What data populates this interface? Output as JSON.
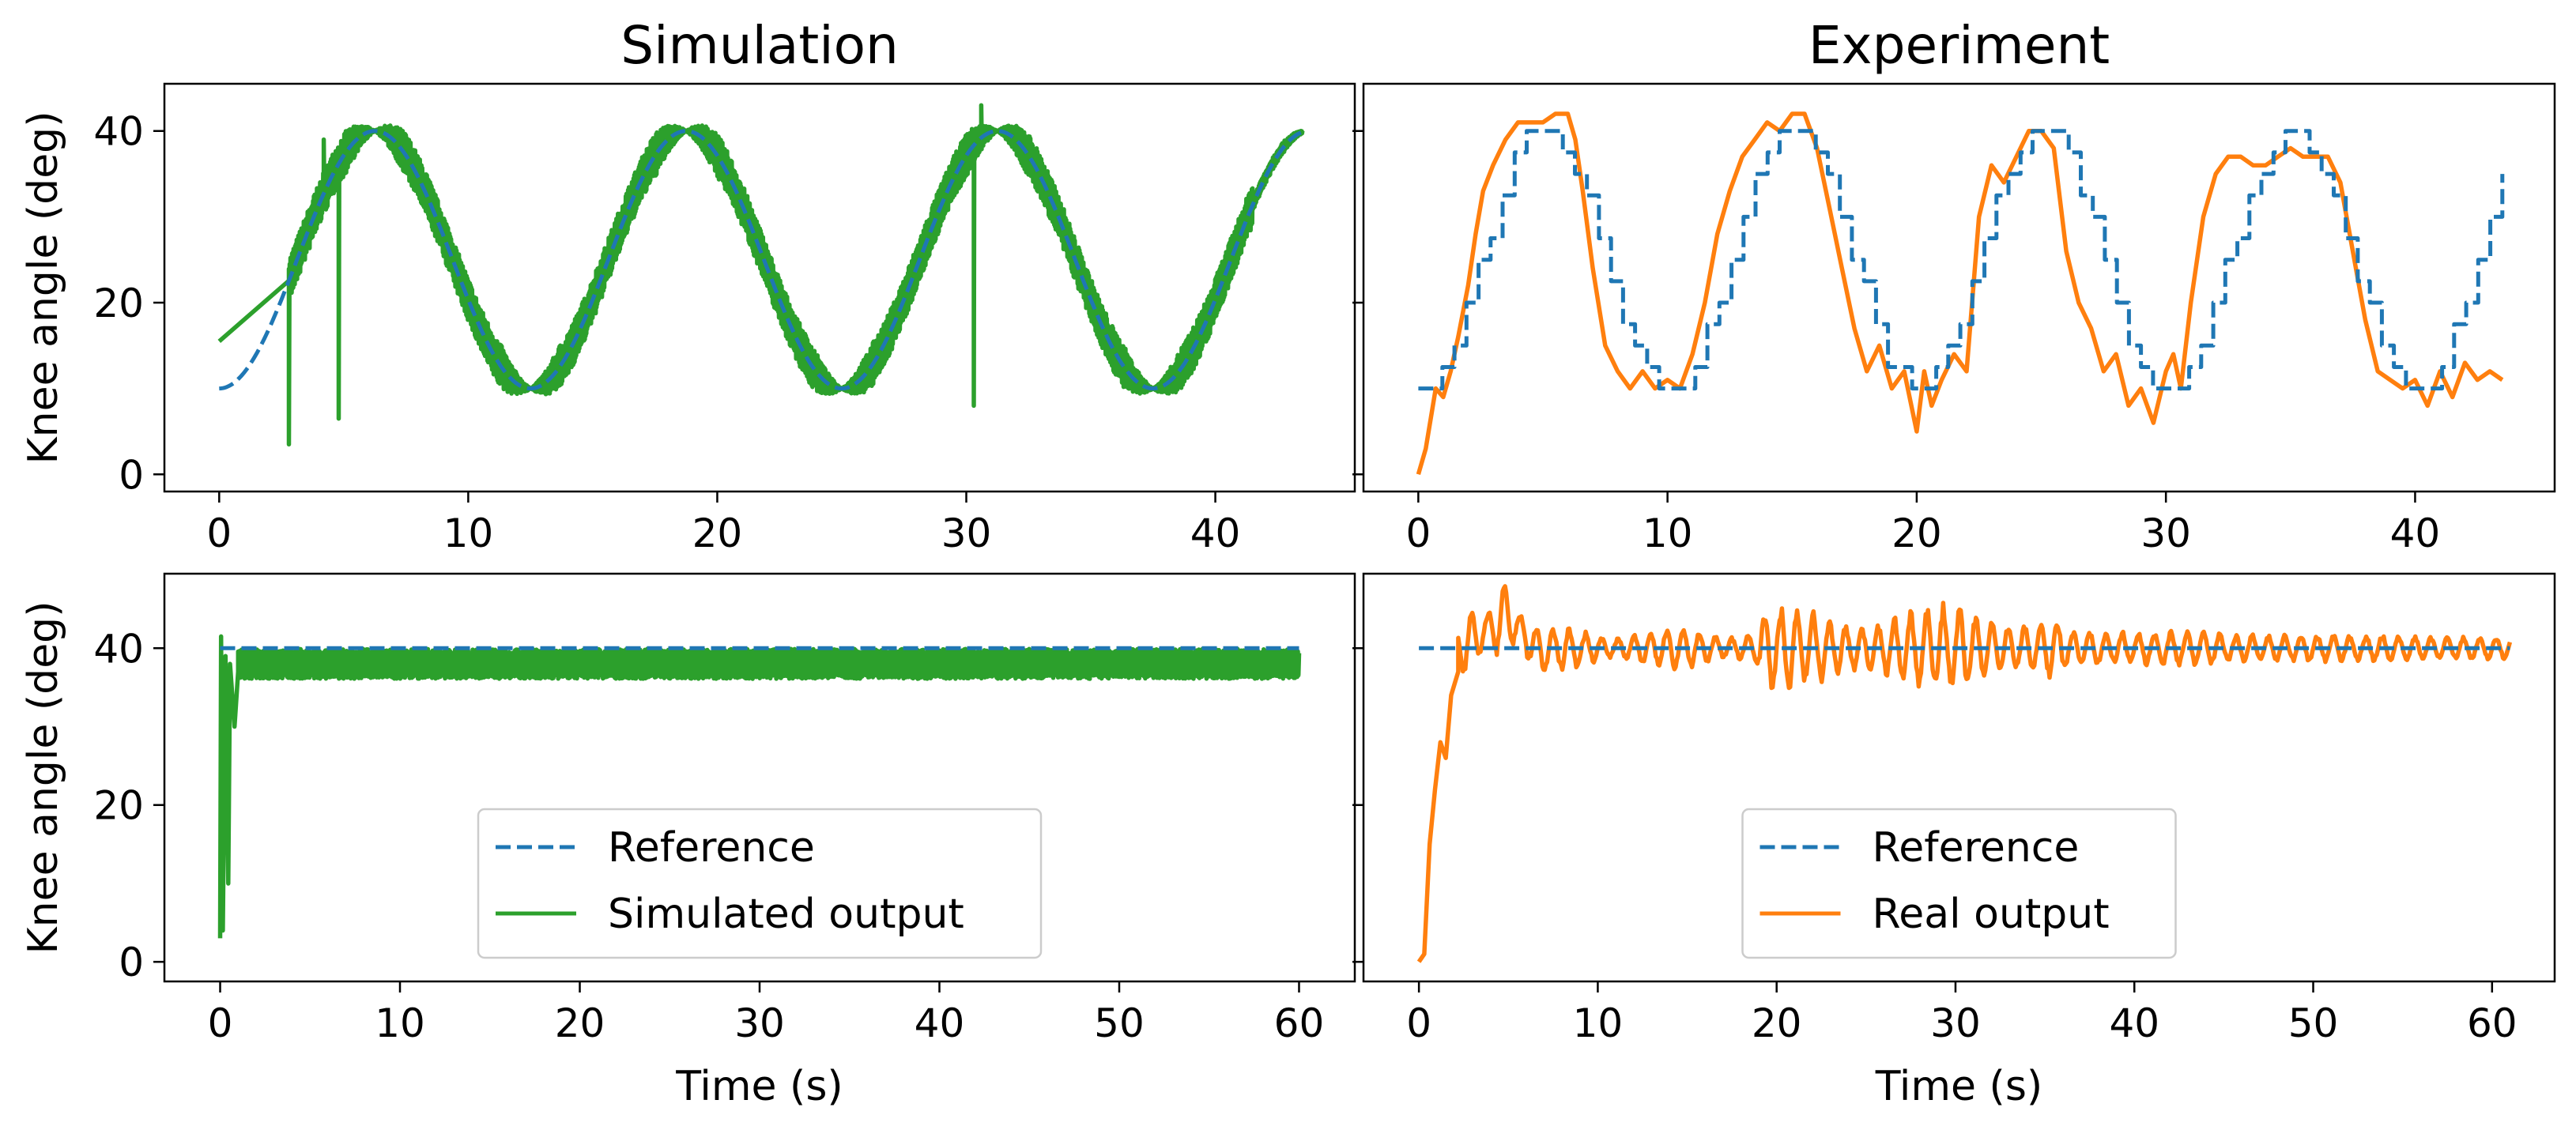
{
  "figure": {
    "background": "#ffffff"
  },
  "colors": {
    "reference": "#1f77b4",
    "simulated": "#2ca02c",
    "real": "#ff7f0e"
  },
  "chart_data": [
    {
      "id": "sim-sine",
      "type": "line",
      "title": "Simulation",
      "xlabel": "",
      "ylabel": "Knee angle (deg)",
      "xlim": [
        -2.2,
        45.6
      ],
      "ylim": [
        -2,
        45.5
      ],
      "xticks": [
        0,
        10,
        20,
        30,
        40
      ],
      "yticks": [
        0,
        20,
        40
      ],
      "series": [
        {
          "name": "Reference",
          "kind": "sine_ref",
          "period": 12.5,
          "center": 25,
          "amp": 15,
          "xmax": 43.5,
          "style": "dashed",
          "color": "#1f77b4"
        },
        {
          "name": "Simulated output",
          "kind": "sim_sine",
          "period": 12.5,
          "center": 25,
          "amp": 15,
          "xmax": 43.5,
          "initial": 15.5,
          "start": 2.8,
          "band": 2.5,
          "spikes": [
            [
              2.8,
              3.5
            ],
            [
              4.8,
              6.5
            ],
            [
              30.3,
              8
            ],
            [
              30.6,
              43
            ],
            [
              4.2,
              39
            ]
          ],
          "style": "solid",
          "color": "#2ca02c"
        }
      ]
    },
    {
      "id": "exp-sine",
      "type": "line",
      "title": "Experiment",
      "xlabel": "",
      "ylabel": "",
      "xlim": [
        -2.2,
        45.6
      ],
      "ylim": [
        -2,
        45.5
      ],
      "xticks": [
        0,
        10,
        20,
        30,
        40
      ],
      "yticks": [
        0,
        20,
        40
      ],
      "hide_ytick_labels": true,
      "series": [
        {
          "name": "Reference",
          "kind": "sine_ref_stepped",
          "period": 10,
          "center": 25,
          "amp": 15,
          "xmax": 43.5,
          "style": "dashed",
          "color": "#1f77b4"
        },
        {
          "name": "Real output",
          "kind": "points",
          "style": "solid",
          "color": "#ff7f0e",
          "x": [
            0,
            0.3,
            0.7,
            1.0,
            1.3,
            1.6,
            2.0,
            2.3,
            2.6,
            3.0,
            3.5,
            4.0,
            4.5,
            5.0,
            5.5,
            6.0,
            6.3,
            6.6,
            7.0,
            7.5,
            8.0,
            8.5,
            9.0,
            9.5,
            10.0,
            10.5,
            11.0,
            11.5,
            12.0,
            12.5,
            13.0,
            13.5,
            14.0,
            14.5,
            15.0,
            15.5,
            16.0,
            16.5,
            17.0,
            17.5,
            18.0,
            18.5,
            19.0,
            19.5,
            20.0,
            20.3,
            20.6,
            21.0,
            21.5,
            22.0,
            22.5,
            23.0,
            23.5,
            24.0,
            24.5,
            25.0,
            25.5,
            26.0,
            26.5,
            27.0,
            27.5,
            28.0,
            28.5,
            29.0,
            29.5,
            30.0,
            30.3,
            30.6,
            31.0,
            31.5,
            32.0,
            32.5,
            33.0,
            33.5,
            34.0,
            34.5,
            35.0,
            35.5,
            36.0,
            36.5,
            37.0,
            37.5,
            38.0,
            38.5,
            39.0,
            39.5,
            40.0,
            40.5,
            41.0,
            41.5,
            42.0,
            42.5,
            43.0,
            43.5
          ],
          "y": [
            0,
            3,
            10,
            9,
            12,
            16,
            22,
            28,
            33,
            36,
            39,
            41,
            41,
            41,
            42,
            42,
            39,
            33,
            24,
            15,
            12,
            10,
            12,
            10,
            11,
            10,
            14,
            20,
            28,
            33,
            37,
            39,
            41,
            40,
            42,
            42,
            38,
            31,
            24,
            17,
            12,
            15,
            10,
            12,
            5,
            12,
            8,
            11,
            14,
            12,
            30,
            36,
            34,
            37,
            40,
            40,
            38,
            26,
            20,
            17,
            12,
            14,
            8,
            10,
            6,
            12,
            14,
            10,
            20,
            30,
            35,
            37,
            37,
            36,
            36,
            37,
            38,
            37,
            37,
            37,
            34,
            26,
            18,
            12,
            11,
            10,
            11,
            8,
            12,
            9,
            13,
            11,
            12,
            11
          ]
        }
      ]
    },
    {
      "id": "sim-step",
      "type": "line",
      "title": "",
      "xlabel": "Time (s)",
      "ylabel": "Knee angle (deg)",
      "xlim": [
        -3.1,
        63.1
      ],
      "ylim": [
        -2.5,
        49.5
      ],
      "xticks": [
        0,
        10,
        20,
        30,
        40,
        50,
        60
      ],
      "yticks": [
        0,
        20,
        40
      ],
      "legend": "lower center",
      "series": [
        {
          "name": "Reference",
          "kind": "const",
          "value": 40,
          "xmax": 60,
          "style": "dashed",
          "color": "#1f77b4"
        },
        {
          "name": "Simulated output",
          "kind": "sim_step",
          "value": 38,
          "band": 3.8,
          "xmax": 60,
          "style": "solid",
          "color": "#2ca02c"
        }
      ]
    },
    {
      "id": "exp-step",
      "type": "line",
      "title": "",
      "xlabel": "Time (s)",
      "ylabel": "",
      "xlim": [
        -3.1,
        63.5
      ],
      "ylim": [
        -2.5,
        49.5
      ],
      "xticks": [
        0,
        10,
        20,
        30,
        40,
        50,
        60
      ],
      "yticks": [
        0,
        20,
        40
      ],
      "hide_ytick_labels": true,
      "legend": "lower center",
      "series": [
        {
          "name": "Reference",
          "kind": "const",
          "value": 40,
          "xmax": 61,
          "style": "dashed",
          "color": "#1f77b4"
        },
        {
          "name": "Real output",
          "kind": "exp_step",
          "value": 40,
          "xmax": 61,
          "style": "solid",
          "color": "#ff7f0e"
        }
      ]
    }
  ]
}
